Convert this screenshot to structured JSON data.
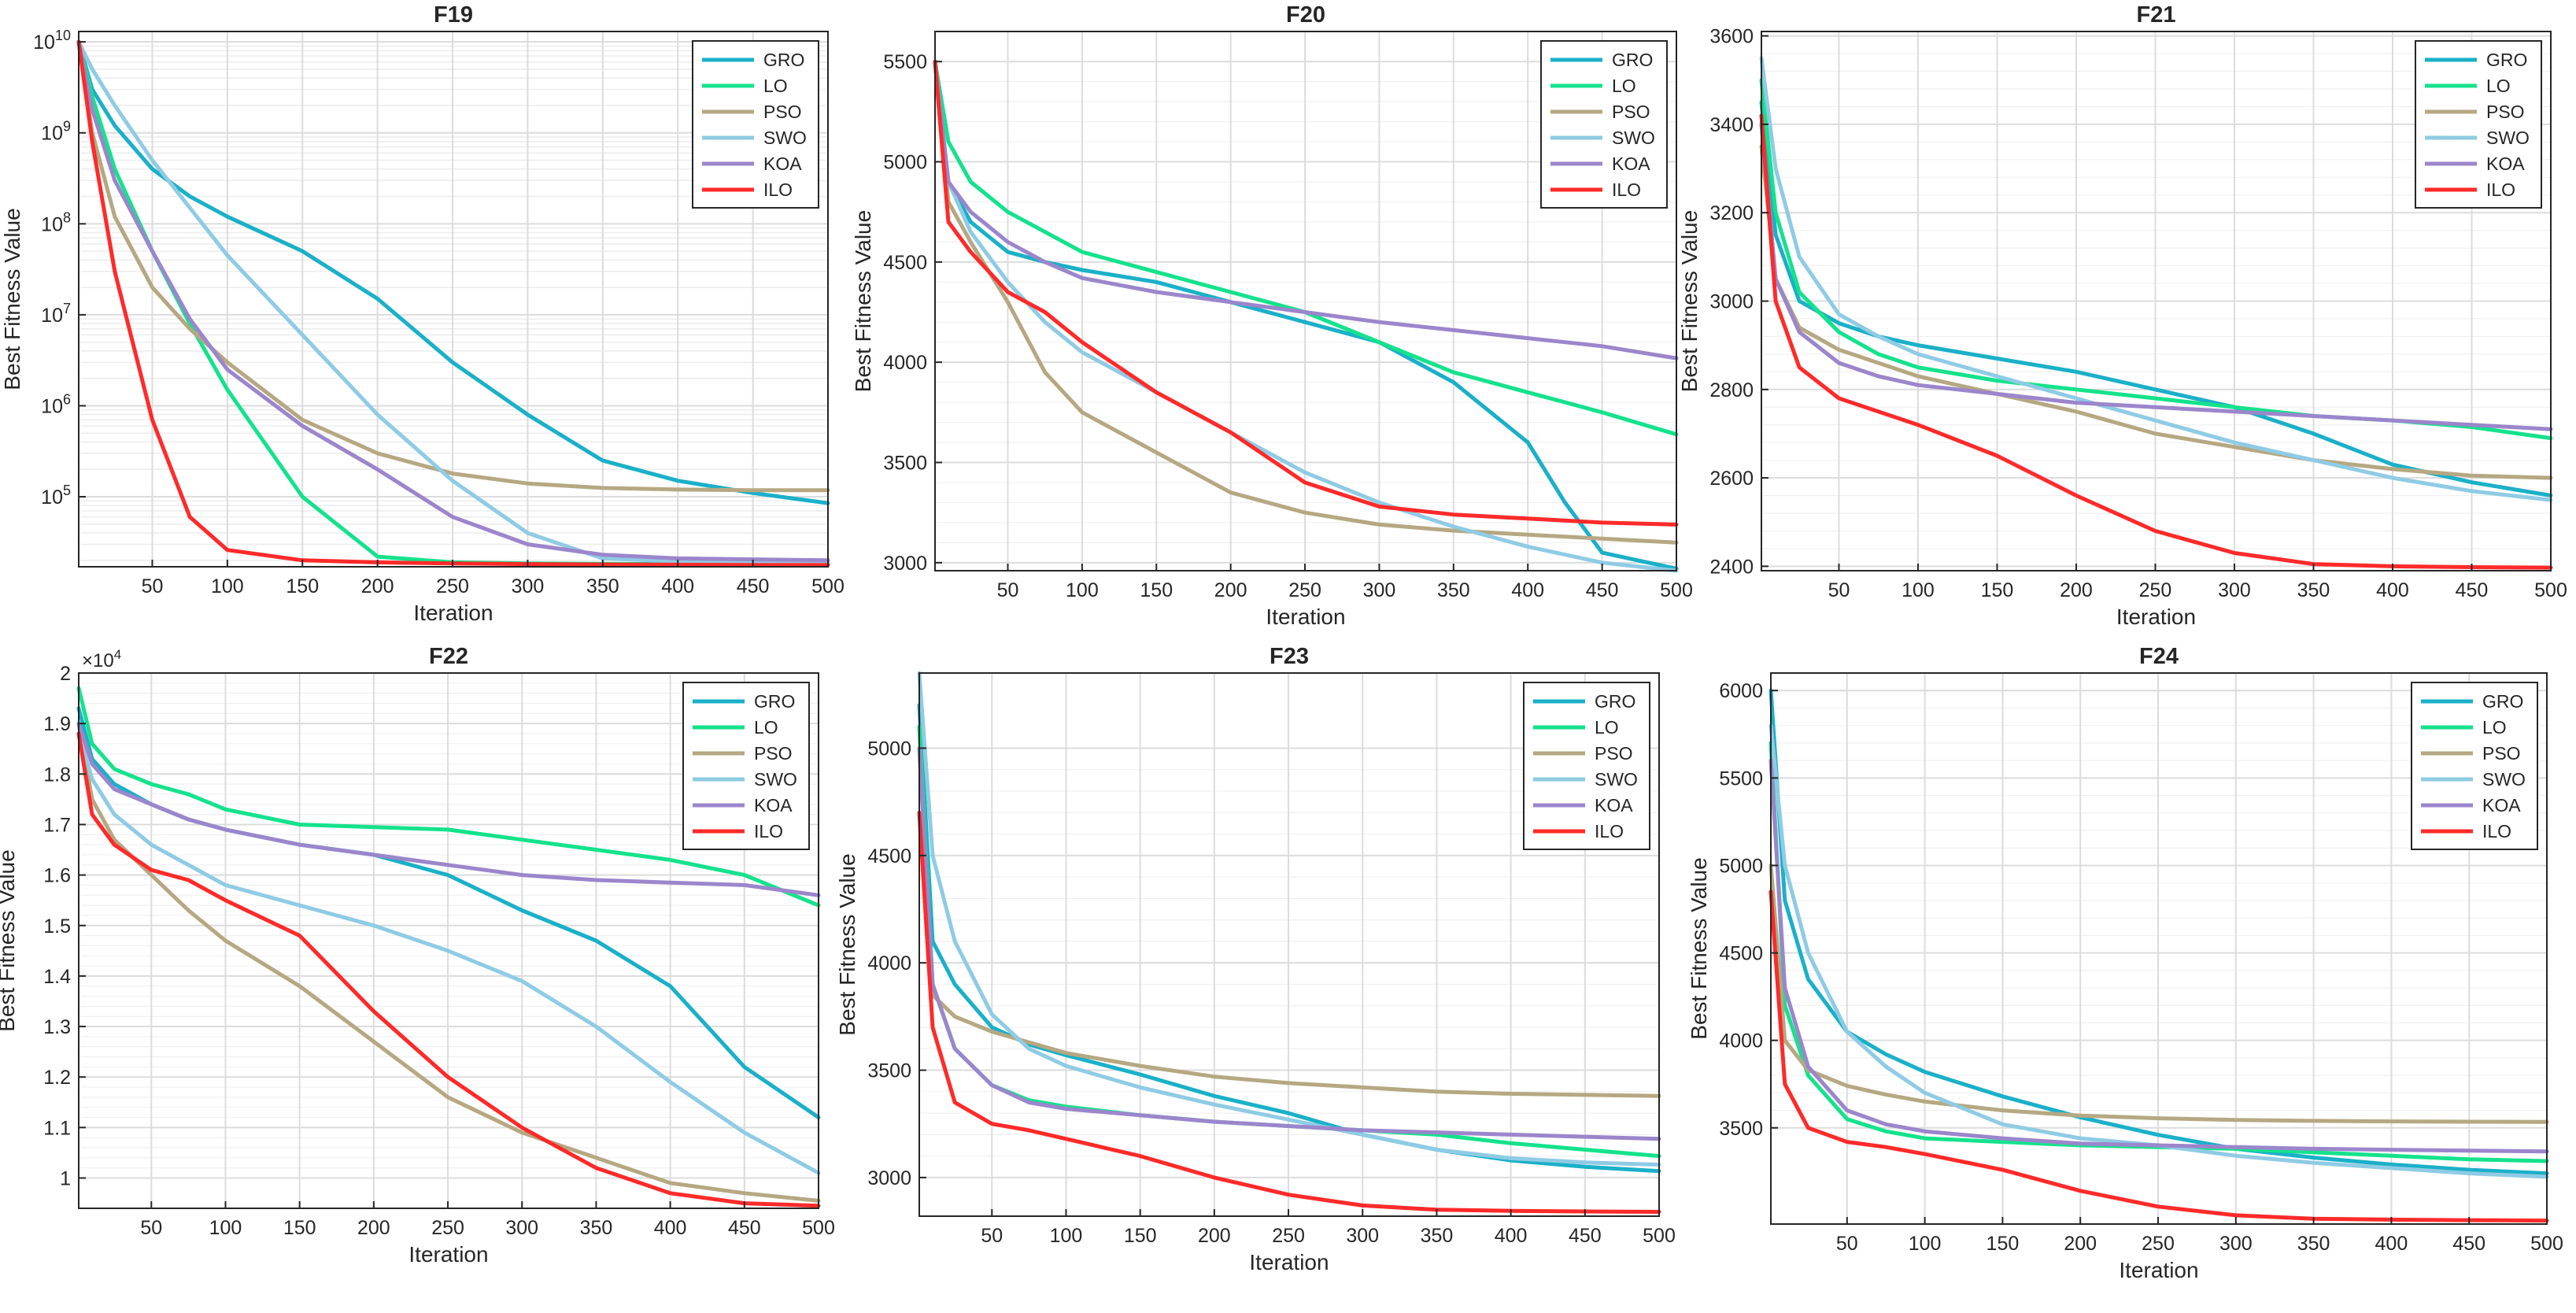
{
  "colors": {
    "GRO": "#1ab0c8",
    "LO": "#14e28c",
    "PSO": "#b5a882",
    "SWO": "#8fcbe4",
    "KOA": "#9b86cc",
    "ILO": "#ff2a2a"
  },
  "chart_data": [
    {
      "type": "line",
      "title": "F19",
      "xlabel": "Iteration",
      "ylabel": "Best Fitness Value",
      "yscale": "log",
      "xlim": [
        1,
        500
      ],
      "ylim": [
        17000,
        13000000000
      ],
      "xticks": [
        50,
        100,
        150,
        200,
        250,
        300,
        350,
        400,
        450,
        500
      ],
      "xtick_labels": [
        "50",
        "100",
        "150",
        "200",
        "250",
        "300",
        "350",
        "400",
        "450",
        "500"
      ],
      "yticks": [
        100000,
        1000000,
        10000000,
        100000000,
        1000000000,
        10000000000
      ],
      "ytick_labels": [
        "10^5",
        "10^6",
        "10^7",
        "10^8",
        "10^9",
        "10^10"
      ],
      "grid": true,
      "legend": "top-right",
      "x": [
        1,
        10,
        25,
        50,
        75,
        100,
        150,
        200,
        250,
        300,
        350,
        400,
        450,
        500
      ],
      "series": [
        {
          "name": "GRO",
          "values": [
            10000000000,
            3000000000,
            1200000000,
            400000000,
            200000000,
            120000000,
            50000000,
            15000000,
            3000000,
            800000,
            250000,
            150000,
            110000,
            85000
          ]
        },
        {
          "name": "LO",
          "values": [
            10000000000,
            2500000000,
            400000000,
            50000000,
            8000000,
            1500000,
            100000,
            22000,
            19000,
            18500,
            18300,
            18200,
            18100,
            18000
          ]
        },
        {
          "name": "PSO",
          "values": [
            10000000000,
            1000000000,
            120000000,
            20000000,
            7000000,
            3000000,
            700000,
            300000,
            180000,
            140000,
            125000,
            120000,
            118000,
            118000
          ]
        },
        {
          "name": "SWO",
          "values": [
            10000000000,
            5000000000,
            2000000000,
            500000000,
            150000000,
            45000000,
            6000000,
            800000,
            150000,
            40000,
            21000,
            19500,
            19000,
            19000
          ]
        },
        {
          "name": "KOA",
          "values": [
            10000000000,
            1800000000,
            300000000,
            50000000,
            9000000,
            2500000,
            600000,
            200000,
            60000,
            30000,
            23000,
            21000,
            20500,
            20000
          ]
        },
        {
          "name": "ILO",
          "values": [
            10000000000,
            800000000,
            30000000,
            700000,
            60000,
            26000,
            20000,
            19000,
            18500,
            18200,
            18000,
            17900,
            17800,
            17800
          ]
        }
      ]
    },
    {
      "type": "line",
      "title": "F20",
      "xlabel": "Iteration",
      "ylabel": "Best Fitness Value",
      "xlim": [
        1,
        500
      ],
      "ylim": [
        2960,
        5650
      ],
      "xticks": [
        50,
        100,
        150,
        200,
        250,
        300,
        350,
        400,
        450,
        500
      ],
      "xtick_labels": [
        "50",
        "100",
        "150",
        "200",
        "250",
        "300",
        "350",
        "400",
        "450",
        "500"
      ],
      "yticks": [
        3000,
        3500,
        4000,
        4500,
        5000,
        5500
      ],
      "ytick_labels": [
        "3000",
        "3500",
        "4000",
        "4500",
        "5000",
        "5500"
      ],
      "grid": true,
      "legend": "top-right",
      "x": [
        1,
        10,
        25,
        50,
        75,
        100,
        150,
        200,
        250,
        300,
        350,
        400,
        425,
        450,
        500
      ],
      "series": [
        {
          "name": "GRO",
          "values": [
            5500,
            4900,
            4700,
            4550,
            4500,
            4460,
            4400,
            4300,
            4200,
            4100,
            3900,
            3600,
            3300,
            3050,
            2970
          ]
        },
        {
          "name": "LO",
          "values": [
            5500,
            5100,
            4900,
            4750,
            4650,
            4550,
            4450,
            4350,
            4250,
            4100,
            3950,
            3850,
            3800,
            3750,
            3640
          ]
        },
        {
          "name": "PSO",
          "values": [
            5500,
            4800,
            4600,
            4300,
            3950,
            3750,
            3550,
            3350,
            3250,
            3190,
            3160,
            3140,
            3130,
            3120,
            3100
          ]
        },
        {
          "name": "SWO",
          "values": [
            5500,
            4900,
            4650,
            4400,
            4200,
            4050,
            3850,
            3650,
            3450,
            3300,
            3180,
            3080,
            3040,
            3000,
            2960
          ]
        },
        {
          "name": "KOA",
          "values": [
            5500,
            4900,
            4750,
            4600,
            4500,
            4420,
            4350,
            4300,
            4250,
            4200,
            4160,
            4120,
            4100,
            4080,
            4020
          ]
        },
        {
          "name": "ILO",
          "values": [
            5500,
            4700,
            4550,
            4350,
            4250,
            4100,
            3850,
            3650,
            3400,
            3280,
            3240,
            3220,
            3210,
            3200,
            3190
          ]
        }
      ]
    },
    {
      "type": "line",
      "title": "F21",
      "xlabel": "Iteration",
      "ylabel": "Best Fitness Value",
      "xlim": [
        1,
        500
      ],
      "ylim": [
        2390,
        3610
      ],
      "xticks": [
        50,
        100,
        150,
        200,
        250,
        300,
        350,
        400,
        450,
        500
      ],
      "xtick_labels": [
        "50",
        "100",
        "150",
        "200",
        "250",
        "300",
        "350",
        "400",
        "450",
        "500"
      ],
      "yticks": [
        2400,
        2600,
        2800,
        3000,
        3200,
        3400,
        3600
      ],
      "ytick_labels": [
        "2400",
        "2600",
        "2800",
        "3000",
        "3200",
        "3400",
        "3600"
      ],
      "grid": true,
      "legend": "top-right",
      "x": [
        1,
        10,
        25,
        50,
        75,
        100,
        150,
        200,
        250,
        300,
        350,
        400,
        450,
        500
      ],
      "series": [
        {
          "name": "GRO",
          "values": [
            3450,
            3150,
            3000,
            2950,
            2920,
            2900,
            2870,
            2840,
            2800,
            2760,
            2700,
            2630,
            2590,
            2560
          ]
        },
        {
          "name": "LO",
          "values": [
            3500,
            3200,
            3020,
            2930,
            2880,
            2850,
            2820,
            2800,
            2780,
            2760,
            2740,
            2730,
            2715,
            2690
          ]
        },
        {
          "name": "PSO",
          "values": [
            3350,
            3050,
            2940,
            2890,
            2860,
            2830,
            2790,
            2750,
            2700,
            2670,
            2640,
            2620,
            2605,
            2600
          ]
        },
        {
          "name": "SWO",
          "values": [
            3550,
            3300,
            3100,
            2970,
            2920,
            2880,
            2830,
            2780,
            2730,
            2680,
            2640,
            2600,
            2570,
            2550
          ]
        },
        {
          "name": "KOA",
          "values": [
            3400,
            3050,
            2930,
            2860,
            2830,
            2810,
            2790,
            2770,
            2760,
            2750,
            2740,
            2730,
            2720,
            2710
          ]
        },
        {
          "name": "ILO",
          "values": [
            3420,
            3000,
            2850,
            2780,
            2750,
            2720,
            2650,
            2560,
            2480,
            2430,
            2405,
            2400,
            2398,
            2397
          ]
        }
      ]
    },
    {
      "type": "line",
      "title": "F22",
      "xlabel": "Iteration",
      "ylabel": "Best Fitness Value",
      "axis_multiplier": "×10^4",
      "xlim": [
        1,
        500
      ],
      "ylim": [
        0.94,
        2.0
      ],
      "xticks": [
        50,
        100,
        150,
        200,
        250,
        300,
        350,
        400,
        450,
        500
      ],
      "xtick_labels": [
        "50",
        "100",
        "150",
        "200",
        "250",
        "300",
        "350",
        "400",
        "450",
        "500"
      ],
      "yticks": [
        1.0,
        1.1,
        1.2,
        1.3,
        1.4,
        1.5,
        1.6,
        1.7,
        1.8,
        1.9,
        2.0
      ],
      "ytick_labels": [
        "1",
        "1.1",
        "1.2",
        "1.3",
        "1.4",
        "1.5",
        "1.6",
        "1.7",
        "1.8",
        "1.9",
        "2"
      ],
      "grid": true,
      "legend": "top-right",
      "x": [
        1,
        10,
        25,
        50,
        75,
        100,
        150,
        200,
        250,
        300,
        350,
        400,
        450,
        500
      ],
      "series": [
        {
          "name": "GRO",
          "values": [
            1.93,
            1.83,
            1.78,
            1.74,
            1.71,
            1.69,
            1.66,
            1.64,
            1.6,
            1.53,
            1.47,
            1.38,
            1.22,
            1.12
          ]
        },
        {
          "name": "LO",
          "values": [
            1.97,
            1.86,
            1.81,
            1.78,
            1.76,
            1.73,
            1.7,
            1.695,
            1.69,
            1.67,
            1.65,
            1.63,
            1.6,
            1.54
          ]
        },
        {
          "name": "PSO",
          "values": [
            1.9,
            1.75,
            1.67,
            1.6,
            1.53,
            1.47,
            1.38,
            1.27,
            1.16,
            1.09,
            1.04,
            0.99,
            0.97,
            0.955
          ]
        },
        {
          "name": "SWO",
          "values": [
            1.88,
            1.79,
            1.72,
            1.66,
            1.62,
            1.58,
            1.54,
            1.5,
            1.45,
            1.39,
            1.3,
            1.19,
            1.09,
            1.01
          ]
        },
        {
          "name": "KOA",
          "values": [
            1.9,
            1.82,
            1.77,
            1.74,
            1.71,
            1.69,
            1.66,
            1.64,
            1.62,
            1.6,
            1.59,
            1.585,
            1.58,
            1.56
          ]
        },
        {
          "name": "ILO",
          "values": [
            1.88,
            1.72,
            1.66,
            1.61,
            1.59,
            1.55,
            1.48,
            1.33,
            1.2,
            1.1,
            1.02,
            0.97,
            0.95,
            0.945
          ]
        }
      ]
    },
    {
      "type": "line",
      "title": "F23",
      "xlabel": "Iteration",
      "ylabel": "Best Fitness Value",
      "xlim": [
        1,
        500
      ],
      "ylim": [
        2820,
        5350
      ],
      "xticks": [
        50,
        100,
        150,
        200,
        250,
        300,
        350,
        400,
        450,
        500
      ],
      "xtick_labels": [
        "50",
        "100",
        "150",
        "200",
        "250",
        "300",
        "350",
        "400",
        "450",
        "500"
      ],
      "yticks": [
        3000,
        3500,
        4000,
        4500,
        5000
      ],
      "ytick_labels": [
        "3000",
        "3500",
        "4000",
        "4500",
        "5000"
      ],
      "grid": true,
      "legend": "top-right",
      "x": [
        1,
        10,
        25,
        50,
        75,
        100,
        150,
        200,
        250,
        300,
        350,
        400,
        450,
        500
      ],
      "series": [
        {
          "name": "GRO",
          "values": [
            5200,
            4100,
            3900,
            3700,
            3620,
            3570,
            3480,
            3380,
            3300,
            3200,
            3130,
            3080,
            3050,
            3030
          ]
        },
        {
          "name": "LO",
          "values": [
            5100,
            3900,
            3600,
            3430,
            3360,
            3330,
            3290,
            3260,
            3240,
            3220,
            3200,
            3160,
            3130,
            3100
          ]
        },
        {
          "name": "PSO",
          "values": [
            5000,
            3850,
            3750,
            3680,
            3630,
            3580,
            3520,
            3470,
            3440,
            3420,
            3400,
            3390,
            3385,
            3380
          ]
        },
        {
          "name": "SWO",
          "values": [
            5350,
            4500,
            4100,
            3760,
            3600,
            3520,
            3420,
            3340,
            3270,
            3200,
            3130,
            3090,
            3070,
            3060
          ]
        },
        {
          "name": "KOA",
          "values": [
            5000,
            3900,
            3600,
            3430,
            3350,
            3320,
            3290,
            3260,
            3240,
            3220,
            3210,
            3200,
            3190,
            3180
          ]
        },
        {
          "name": "ILO",
          "values": [
            4700,
            3700,
            3350,
            3250,
            3220,
            3180,
            3100,
            3000,
            2920,
            2870,
            2850,
            2845,
            2842,
            2840
          ]
        }
      ]
    },
    {
      "type": "line",
      "title": "F24",
      "xlabel": "Iteration",
      "ylabel": "Best Fitness Value",
      "xlim": [
        1,
        500
      ],
      "ylim": [
        2950,
        6100
      ],
      "xticks": [
        50,
        100,
        150,
        200,
        250,
        300,
        350,
        400,
        450,
        500
      ],
      "xtick_labels": [
        "50",
        "100",
        "150",
        "200",
        "250",
        "300",
        "350",
        "400",
        "450",
        "500"
      ],
      "yticks": [
        3500,
        4000,
        4500,
        5000,
        5500,
        6000
      ],
      "ytick_labels": [
        "3500",
        "4000",
        "4500",
        "5000",
        "5500",
        "6000"
      ],
      "grid": true,
      "legend": "top-right",
      "x": [
        1,
        10,
        25,
        50,
        75,
        100,
        150,
        200,
        250,
        300,
        350,
        400,
        450,
        500
      ],
      "series": [
        {
          "name": "GRO",
          "values": [
            6000,
            4800,
            4350,
            4050,
            3920,
            3820,
            3680,
            3560,
            3460,
            3380,
            3330,
            3290,
            3260,
            3240
          ]
        },
        {
          "name": "LO",
          "values": [
            5700,
            4200,
            3800,
            3550,
            3480,
            3440,
            3420,
            3400,
            3390,
            3380,
            3360,
            3340,
            3320,
            3310
          ]
        },
        {
          "name": "PSO",
          "values": [
            5000,
            4000,
            3830,
            3740,
            3690,
            3650,
            3600,
            3570,
            3555,
            3545,
            3540,
            3537,
            3535,
            3534
          ]
        },
        {
          "name": "SWO",
          "values": [
            5800,
            5000,
            4500,
            4050,
            3850,
            3700,
            3520,
            3440,
            3400,
            3340,
            3300,
            3270,
            3240,
            3220
          ]
        },
        {
          "name": "KOA",
          "values": [
            5600,
            4300,
            3850,
            3600,
            3520,
            3480,
            3440,
            3410,
            3400,
            3390,
            3380,
            3375,
            3370,
            3365
          ]
        },
        {
          "name": "ILO",
          "values": [
            4850,
            3750,
            3500,
            3420,
            3390,
            3350,
            3260,
            3140,
            3050,
            3000,
            2980,
            2975,
            2972,
            2970
          ]
        }
      ]
    }
  ]
}
